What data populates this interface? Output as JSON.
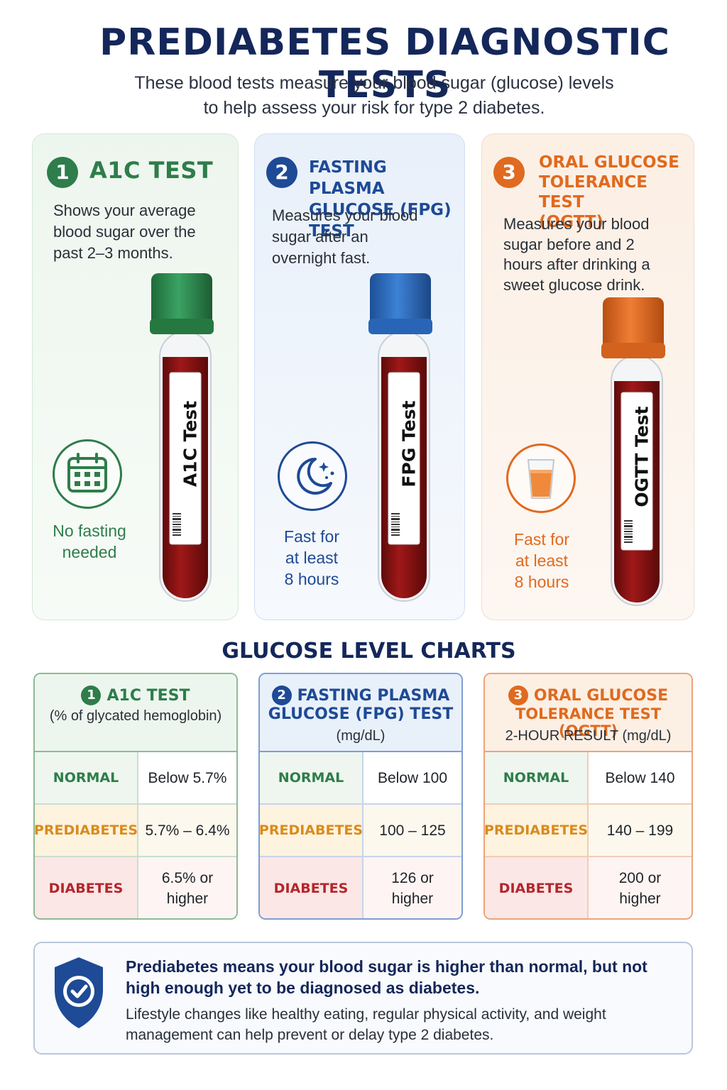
{
  "header": {
    "title": "PREDIABETES DIAGNOSTIC TESTS",
    "subtitle_line1": "These blood tests measure your blood sugar (glucose) levels",
    "subtitle_line2": "to help assess your risk for type 2 diabetes."
  },
  "tests": [
    {
      "number": "1",
      "title": "A1C TEST",
      "description": "Shows your average blood sugar over the past 2–3 months.",
      "tube_label": "A1C Test",
      "tube_cap_color": "#2f8a4f",
      "icon": "calendar-icon",
      "note_line1": "No fasting",
      "note_line2": "needed",
      "note_line3": ""
    },
    {
      "number": "2",
      "title_line1": "FASTING PLASMA",
      "title_line2": "GLUCOSE (FPG) TEST",
      "description": "Measures your blood sugar after an overnight fast.",
      "tube_label": "FPG Test",
      "tube_cap_color": "#2f6fc2",
      "icon": "moon-icon",
      "note_line1": "Fast for",
      "note_line2": "at least",
      "note_line3": "8 hours"
    },
    {
      "number": "3",
      "title_line1": "ORAL GLUCOSE",
      "title_line2": "TOLERANCE TEST",
      "title_line3": "(OGTT)",
      "description": "Measures your blood sugar before and 2 hours after drinking a sweet glucose drink.",
      "tube_label": "OGTT Test",
      "tube_cap_color": "#e2671f",
      "icon": "glucose-drink-icon",
      "note_line1": "Fast for",
      "note_line2": "at least",
      "note_line3": "8 hours"
    }
  ],
  "charts": {
    "title": "GLUCOSE LEVEL CHARTS",
    "tables": [
      {
        "number": "1",
        "head_line1": "A1C TEST",
        "head_line2": "(% of glycated hemoglobin)",
        "rows": [
          {
            "category": "NORMAL",
            "value": "Below 5.7%"
          },
          {
            "category": "PREDIABETES",
            "value": "5.7% – 6.4%"
          },
          {
            "category": "DIABETES",
            "value_line1": "6.5% or",
            "value_line2": "higher"
          }
        ]
      },
      {
        "number": "2",
        "head_line1": "FASTING PLASMA",
        "head_line2": "GLUCOSE (FPG) TEST",
        "head_line3": "(mg/dL)",
        "rows": [
          {
            "category": "NORMAL",
            "value": "Below 100"
          },
          {
            "category": "PREDIABETES",
            "value": "100 – 125"
          },
          {
            "category": "DIABETES",
            "value_line1": "126 or",
            "value_line2": "higher"
          }
        ]
      },
      {
        "number": "3",
        "head_line1": "ORAL GLUCOSE",
        "head_line2": "TOLERANCE TEST (OGTT)",
        "head_line3": "2-HOUR RESULT (mg/dL)",
        "rows": [
          {
            "category": "NORMAL",
            "value": "Below 140"
          },
          {
            "category": "PREDIABETES",
            "value": "140 – 199"
          },
          {
            "category": "DIABETES",
            "value_line1": "200 or",
            "value_line2": "higher"
          }
        ]
      }
    ]
  },
  "info": {
    "icon": "shield-check-icon",
    "bold_text": "Prediabetes means your blood sugar is higher than normal, but not high enough yet to be diagnosed as diabetes.",
    "body_text": "Lifestyle changes like healthy eating, regular physical activity, and weight management can help prevent or delay type 2 diabetes."
  },
  "colors": {
    "navy": "#14275a",
    "green": "#2e7d4a",
    "blue": "#1e4a96",
    "orange": "#e06a1f",
    "blood": "#8e1414"
  }
}
